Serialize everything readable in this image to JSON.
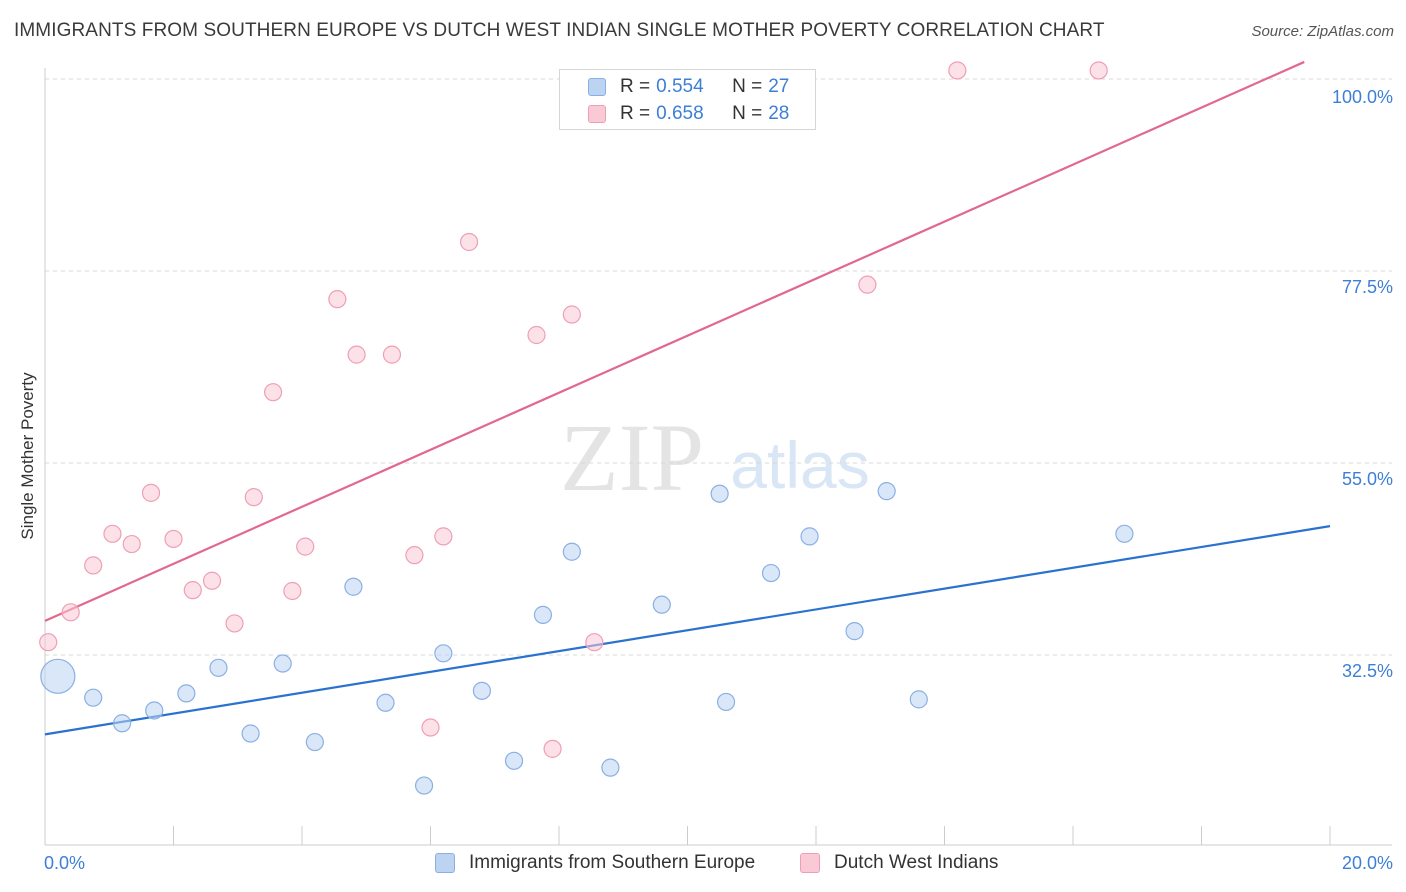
{
  "header": {
    "title": "IMMIGRANTS FROM SOUTHERN EUROPE VS DUTCH WEST INDIAN SINGLE MOTHER POVERTY CORRELATION CHART",
    "source": "Source: ZipAtlas.com"
  },
  "watermark": {
    "zip": "ZIP",
    "atlas": "atlas"
  },
  "legend": {
    "rows": [
      {
        "r_label": "R =",
        "r_value": "0.554",
        "n_label": "N =",
        "n_value": "27"
      },
      {
        "r_label": "R =",
        "r_value": "0.658",
        "n_label": "N =",
        "n_value": "28"
      }
    ]
  },
  "colors": {
    "series_blue_fill": "#bcd3f2",
    "series_blue_stroke": "#8ab0e3",
    "series_blue_line": "#2a72d0",
    "series_pink_fill": "#f9c9d6",
    "series_pink_stroke": "#ef9fb5",
    "series_pink_line": "#e2688e",
    "tick_label": "#3d7fd6",
    "grid": "#d9d9d9"
  },
  "chart_data": {
    "type": "scatter",
    "title": "IMMIGRANTS FROM SOUTHERN EUROPE VS DUTCH WEST INDIAN SINGLE MOTHER POVERTY CORRELATION CHART",
    "xlabel": "",
    "ylabel": "Single Mother Poverty",
    "xlim": [
      0,
      20
    ],
    "ylim": [
      12,
      102
    ],
    "x_tick_labels": [
      "0.0%",
      "20.0%"
    ],
    "y_ticks": [
      32.5,
      55.0,
      77.5,
      100.0
    ],
    "y_tick_labels": [
      "32.5%",
      "55.0%",
      "77.5%",
      "100.0%"
    ],
    "grid": true,
    "series": [
      {
        "name": "Immigrants from Southern Europe",
        "color": "blue",
        "trendline": {
          "x": [
            0,
            20
          ],
          "y": [
            23.2,
            47.6
          ]
        },
        "points": [
          {
            "x": 0.2,
            "y": 30.0,
            "large": true
          },
          {
            "x": 0.75,
            "y": 27.5
          },
          {
            "x": 1.2,
            "y": 24.5
          },
          {
            "x": 1.7,
            "y": 26.0
          },
          {
            "x": 2.2,
            "y": 28.0
          },
          {
            "x": 2.7,
            "y": 31.0
          },
          {
            "x": 3.2,
            "y": 23.3
          },
          {
            "x": 3.7,
            "y": 31.5
          },
          {
            "x": 4.2,
            "y": 22.3
          },
          {
            "x": 4.8,
            "y": 40.5
          },
          {
            "x": 5.3,
            "y": 26.9
          },
          {
            "x": 5.9,
            "y": 17.2
          },
          {
            "x": 6.2,
            "y": 32.7
          },
          {
            "x": 6.8,
            "y": 28.3
          },
          {
            "x": 7.3,
            "y": 20.1
          },
          {
            "x": 7.75,
            "y": 37.2
          },
          {
            "x": 8.2,
            "y": 44.6
          },
          {
            "x": 8.8,
            "y": 19.3
          },
          {
            "x": 9.6,
            "y": 38.4
          },
          {
            "x": 10.5,
            "y": 51.4
          },
          {
            "x": 10.6,
            "y": 27.0
          },
          {
            "x": 11.3,
            "y": 42.1
          },
          {
            "x": 11.9,
            "y": 46.4
          },
          {
            "x": 12.6,
            "y": 35.3
          },
          {
            "x": 13.1,
            "y": 51.7
          },
          {
            "x": 13.6,
            "y": 27.3
          },
          {
            "x": 16.8,
            "y": 46.7
          }
        ]
      },
      {
        "name": "Dutch West Indians",
        "color": "pink",
        "trendline": {
          "x": [
            0,
            19.6
          ],
          "y": [
            36.5,
            102.0
          ]
        },
        "points": [
          {
            "x": 0.05,
            "y": 34.0
          },
          {
            "x": 0.4,
            "y": 37.5
          },
          {
            "x": 0.75,
            "y": 43.0
          },
          {
            "x": 1.05,
            "y": 46.7
          },
          {
            "x": 1.35,
            "y": 45.5
          },
          {
            "x": 1.65,
            "y": 51.5
          },
          {
            "x": 2.0,
            "y": 46.1
          },
          {
            "x": 2.3,
            "y": 40.1
          },
          {
            "x": 2.6,
            "y": 41.2
          },
          {
            "x": 2.95,
            "y": 36.2
          },
          {
            "x": 3.25,
            "y": 51.0
          },
          {
            "x": 3.55,
            "y": 63.3
          },
          {
            "x": 3.85,
            "y": 40.0
          },
          {
            "x": 4.05,
            "y": 45.2
          },
          {
            "x": 4.55,
            "y": 74.2
          },
          {
            "x": 4.85,
            "y": 67.7
          },
          {
            "x": 5.4,
            "y": 67.7
          },
          {
            "x": 5.75,
            "y": 44.2
          },
          {
            "x": 6.0,
            "y": 24.0
          },
          {
            "x": 6.2,
            "y": 46.4
          },
          {
            "x": 6.6,
            "y": 80.9
          },
          {
            "x": 7.65,
            "y": 70.0
          },
          {
            "x": 7.9,
            "y": 21.5
          },
          {
            "x": 8.2,
            "y": 72.4
          },
          {
            "x": 8.55,
            "y": 34.0
          },
          {
            "x": 12.8,
            "y": 75.9
          },
          {
            "x": 14.2,
            "y": 101.0
          },
          {
            "x": 16.4,
            "y": 101.0
          }
        ]
      }
    ]
  }
}
